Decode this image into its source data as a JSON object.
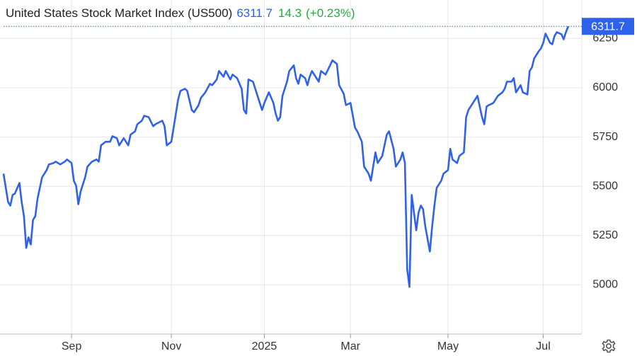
{
  "chart_data": {
    "type": "line",
    "title": "United States Stock Market Index (US500)",
    "change": 14.3,
    "change_label": "(+0.23%)",
    "color": "#2f62ea",
    "grid": true,
    "xlim": [
      0,
      255
    ],
    "ylim": [
      4750,
      6425
    ],
    "xticks": [
      {
        "value": 30,
        "label": "Sep"
      },
      {
        "value": 74,
        "label": "Nov"
      },
      {
        "value": 115,
        "label": "2025"
      },
      {
        "value": 153,
        "label": "Mar"
      },
      {
        "value": 196,
        "label": "May"
      },
      {
        "value": 238,
        "label": "Jul"
      }
    ],
    "yticks": [
      5000,
      5250,
      5500,
      5750,
      6000,
      6250
    ],
    "x": [
      0,
      2,
      3,
      4,
      5,
      7,
      8,
      9,
      10,
      11,
      12,
      13,
      14,
      15,
      17,
      19,
      20,
      22,
      23,
      25,
      27,
      28,
      30,
      31,
      32,
      33,
      34,
      36,
      37,
      39,
      41,
      42,
      43,
      45,
      47,
      48,
      50,
      51,
      53,
      55,
      56,
      58,
      59,
      61,
      62,
      64,
      66,
      67,
      70,
      71,
      72,
      74,
      75,
      77,
      78,
      80,
      81,
      83,
      84,
      86,
      87,
      89,
      91,
      92,
      94,
      95,
      97,
      98,
      100,
      101,
      103,
      105,
      106,
      107,
      108,
      110,
      111,
      113,
      114,
      115,
      117,
      119,
      120,
      121,
      122,
      123,
      125,
      126,
      128,
      129,
      130,
      131,
      133,
      134,
      135,
      136,
      138,
      139,
      140,
      142,
      144,
      145,
      147,
      148,
      150,
      151,
      153,
      155,
      156,
      158,
      159,
      160,
      161,
      162,
      164,
      165,
      167,
      169,
      170,
      172,
      173,
      175,
      176,
      177,
      178,
      179,
      180,
      182,
      183,
      184,
      185,
      186,
      188,
      189,
      190,
      191,
      193,
      194,
      196,
      197,
      198,
      200,
      201,
      203,
      204,
      205,
      206,
      208,
      209,
      211,
      212,
      213,
      214,
      216,
      217,
      218,
      220,
      221,
      222,
      224,
      225,
      226,
      228,
      229,
      231,
      232,
      233,
      234,
      236,
      237,
      238,
      239,
      241,
      242,
      243,
      244,
      246,
      247,
      248,
      249
    ],
    "values": [
      5564,
      5420,
      5402,
      5456,
      5463,
      5517,
      5420,
      5348,
      5187,
      5241,
      5205,
      5330,
      5348,
      5438,
      5546,
      5582,
      5611,
      5618,
      5625,
      5611,
      5625,
      5636,
      5618,
      5528,
      5503,
      5409,
      5474,
      5546,
      5600,
      5625,
      5636,
      5625,
      5708,
      5726,
      5726,
      5754,
      5744,
      5708,
      5744,
      5708,
      5762,
      5779,
      5815,
      5833,
      5858,
      5851,
      5805,
      5815,
      5833,
      5805,
      5708,
      5726,
      5797,
      5941,
      5984,
      5995,
      5984,
      5887,
      5876,
      5912,
      5948,
      5977,
      6020,
      6013,
      6042,
      6085,
      6056,
      6085,
      6042,
      6067,
      6049,
      5995,
      5887,
      5869,
      6042,
      6031,
      5995,
      5923,
      5887,
      5923,
      5977,
      5923,
      5869,
      5833,
      5851,
      5959,
      6031,
      6085,
      6114,
      6049,
      6020,
      6067,
      6049,
      6013,
      6056,
      6085,
      6049,
      6031,
      6085,
      6067,
      6114,
      6139,
      6121,
      6013,
      5970,
      5912,
      5923,
      5797,
      5779,
      5726,
      5600,
      5582,
      5564,
      5528,
      5672,
      5618,
      5654,
      5762,
      5779,
      5690,
      5600,
      5636,
      5672,
      5618,
      5079,
      4989,
      5456,
      5277,
      5366,
      5402,
      5384,
      5295,
      5169,
      5295,
      5402,
      5492,
      5528,
      5564,
      5582,
      5690,
      5636,
      5618,
      5654,
      5672,
      5851,
      5887,
      5905,
      5941,
      5959,
      5851,
      5815,
      5905,
      5912,
      5923,
      5941,
      5959,
      5977,
      5995,
      6031,
      6031,
      6049,
      5977,
      6013,
      5977,
      5966,
      6085,
      6103,
      6149,
      6185,
      6200,
      6228,
      6275,
      6228,
      6221,
      6264,
      6282,
      6272,
      6246,
      6282,
      6311.7
    ]
  }
}
